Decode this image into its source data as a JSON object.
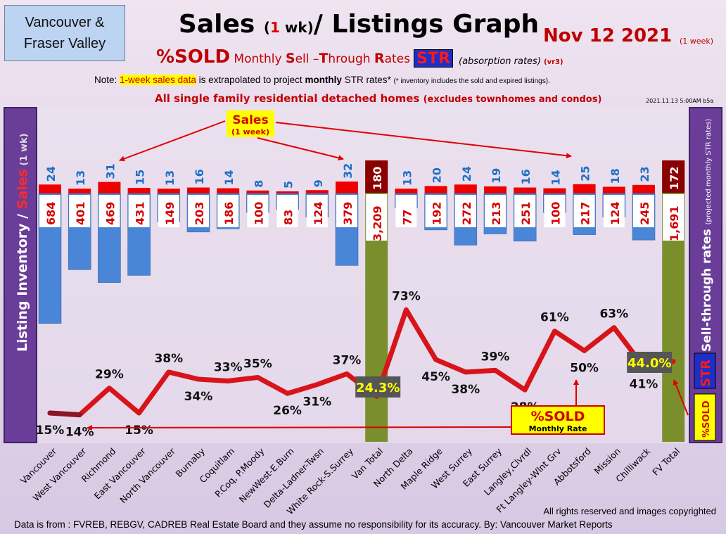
{
  "region_line1": "Vancouver &",
  "region_line2": "Fraser Valley",
  "title_part1": "Sales ",
  "title_open": "(",
  "title_one": "1",
  "title_wk": " wk)",
  "title_part2": "/ Listings Graph",
  "date": "Nov 12  2021",
  "date_note": "(1 week)",
  "subtitle_pct": "%SOLD",
  "subtitle_M": " Monthly ",
  "subtitle_S": "S",
  "subtitle_ell": "ell –",
  "subtitle_T": "T",
  "subtitle_hrough": "hrough ",
  "subtitle_R": "R",
  "subtitle_ates": "ates",
  "str_badge": "STR",
  "absorption": "(absorption rates) ",
  "version": "(vr3)",
  "note_prefix": "Note: ",
  "note_highlight": "1-week sales data",
  "note_mid": " is extrapolated to project ",
  "note_bold": "monthly",
  "note_mid2": " STR rates* ",
  "note_small": "(* inventory includes the sold and expired listings).",
  "scope_main": "All single family residential detached homes ",
  "scope_small": "(excludes townhomes and condos)",
  "stamp": "2021.11.13 5:00AM b5a",
  "left_axis_part1": "Listing Inventory ",
  "left_axis_slash": "/ ",
  "left_axis_part2": "Sales",
  "left_axis_part3": " (1 wk)",
  "right_axis_part1": "Sell-through rates ",
  "right_axis_part2": "(projected monthly STR rates)",
  "right_axis_str": "STR",
  "right_axis_pct": "%SOLD",
  "sales_callout_1": "Sales",
  "sales_callout_2": "(1 week)",
  "sold_callout_1": "%SOLD",
  "sold_callout_2": "Monthly Rate",
  "footer_rights": "All rights reserved and  images copyrighted",
  "footer_source": "Data is from : FVREB, REBGV, CADREB Real Estate Board and they assume no responsibility for its accuracy. By: Vancouver Market Reports",
  "colors": {
    "sales_bar": "#ee0000",
    "inventory_bar": "#4a86d8",
    "total_bar": "#7a8f2c",
    "str_line": "#d8141b",
    "total_sales_box": "#8b0000"
  },
  "chart_data": {
    "type": "bar",
    "categories": [
      "Vancouver",
      "West Vancouver",
      "Richmond",
      "East Vancouver",
      "North Vancouver",
      "Burnaby",
      "Coquitlam",
      "P.Coq, P.Moody",
      "NewWest-E.Burn",
      "Delta-Ladner-Twsn",
      "White Rock-S.Surrey",
      "Van Total",
      "North Delta",
      "Maple Ridge",
      "West Surrey",
      "East Surrey",
      "Langley,Clvrdl",
      "Ft Langley-Wlnt Grv",
      "Abbotsford",
      "Mission",
      "Chilliwack",
      "FV Total"
    ],
    "series": [
      {
        "name": "Sales",
        "values": [
          24,
          13,
          31,
          15,
          13,
          16,
          14,
          8,
          5,
          9,
          32,
          180,
          13,
          20,
          24,
          19,
          16,
          14,
          25,
          18,
          23,
          172
        ]
      },
      {
        "name": "Listing Inventory",
        "values": [
          684,
          401,
          469,
          431,
          149,
          203,
          186,
          100,
          83,
          124,
          379,
          3209,
          77,
          192,
          272,
          213,
          251,
          100,
          217,
          124,
          245,
          1691
        ]
      },
      {
        "name": "Sell-through rates",
        "values": [
          15,
          14,
          29,
          15,
          38,
          34,
          33,
          35,
          26,
          31,
          37,
          24.3,
          73,
          45,
          38,
          39,
          28,
          61,
          50,
          63,
          41,
          44.0
        ]
      }
    ],
    "str_labels": [
      "15%",
      "14%",
      "29%",
      "15%",
      "38%",
      "34%",
      "33%",
      "35%",
      "26%",
      "31%",
      "37%",
      "24.3%",
      "73%",
      "45%",
      "38%",
      "39%",
      "28%",
      "61%",
      "50%",
      "63%",
      "41%",
      "44.0%"
    ],
    "inventory_labels": [
      "684",
      "401",
      "469",
      "431",
      "149",
      "203",
      "186",
      "100",
      "83",
      "124",
      "379",
      "3,209",
      "77",
      "192",
      "272",
      "213",
      "251",
      "100",
      "217",
      "124",
      "245",
      "1,691"
    ],
    "grid": false
  }
}
